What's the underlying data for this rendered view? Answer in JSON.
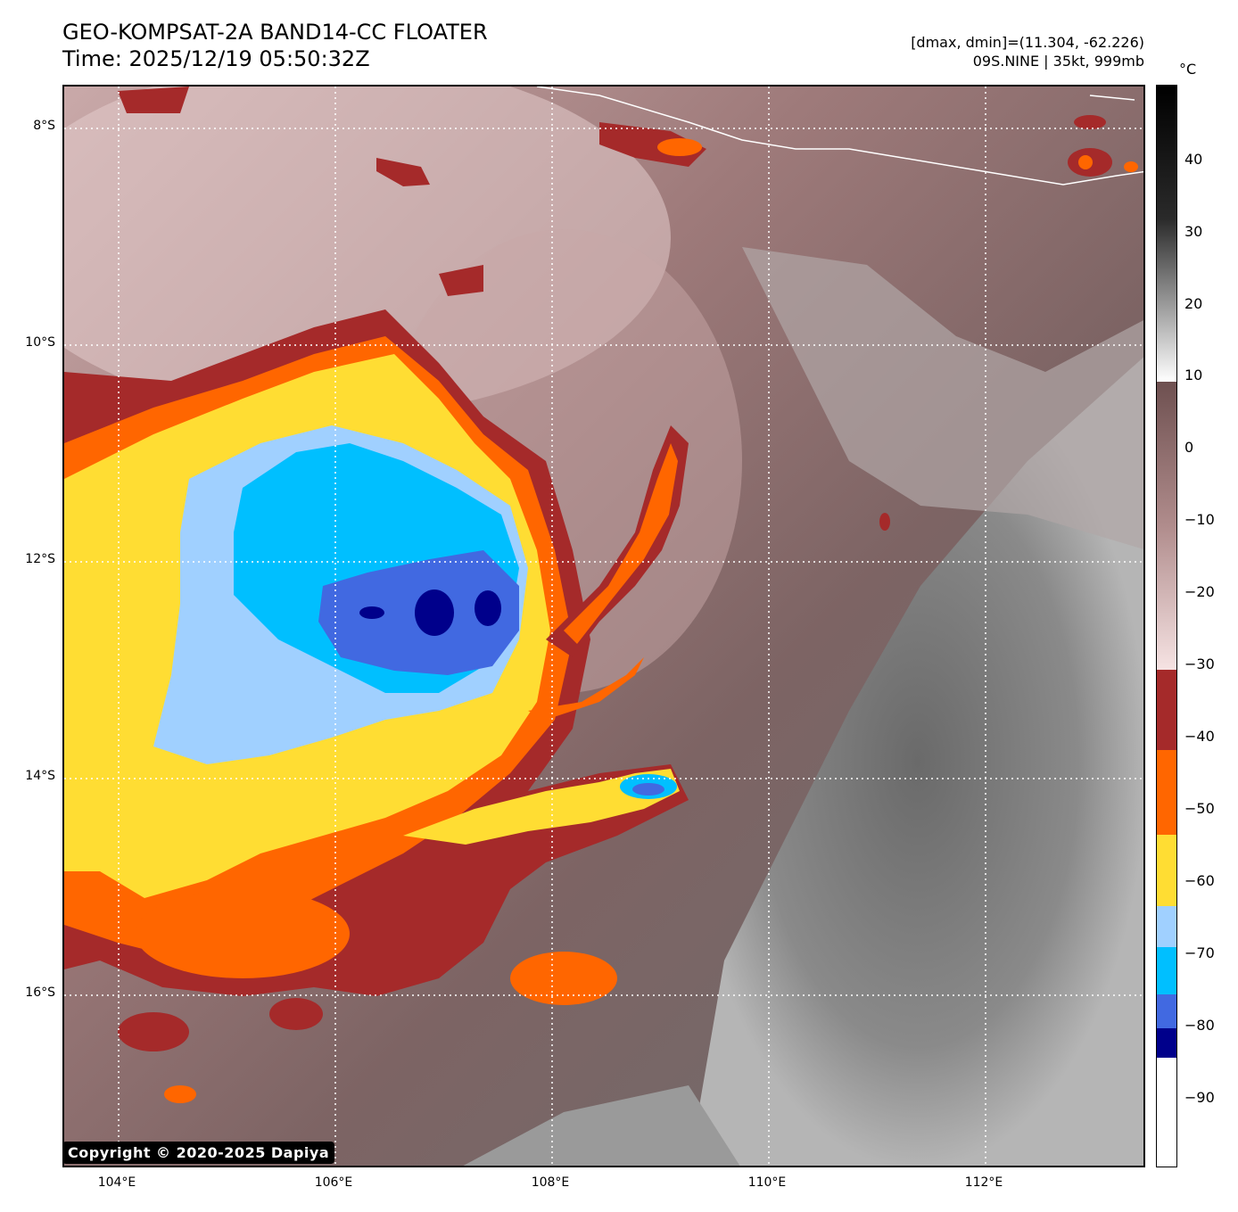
{
  "header": {
    "title_line1": "GEO-KOMPSAT-2A BAND14-CC FLOATER",
    "title_line2": "Time: 2025/12/19 05:50:32Z",
    "dmax_dmin": "[dmax, dmin]=(11.304, -62.226)",
    "storm_info": "09S.NINE | 35kt, 999mb"
  },
  "map": {
    "lat_labels": [
      "8°S",
      "10°S",
      "12°S",
      "14°S",
      "16°S"
    ],
    "lon_labels": [
      "104°E",
      "106°E",
      "108°E",
      "110°E",
      "112°E"
    ],
    "copyright": "Copyright © 2020-2025 Dapiya"
  },
  "colorbar": {
    "unit": "°C",
    "tick_labels": [
      "40",
      "30",
      "20",
      "10",
      "0",
      "−10",
      "−20",
      "−30",
      "−40",
      "−50",
      "−60",
      "−70",
      "−80",
      "−90"
    ],
    "bands": [
      {
        "from": 50,
        "to": 10,
        "color": "gray-gradient"
      },
      {
        "from": 10,
        "to": -30,
        "color": "rosy-gradient"
      },
      {
        "from": -30,
        "to": -41,
        "color": "#a52a2a"
      },
      {
        "from": -41,
        "to": -53,
        "color": "#ff6600"
      },
      {
        "from": -53,
        "to": -63,
        "color": "#ffdd33"
      },
      {
        "from": -63,
        "to": -68,
        "color": "#a0d0ff"
      },
      {
        "from": -68,
        "to": -75,
        "color": "#00bfff"
      },
      {
        "from": -75,
        "to": -79,
        "color": "#4169e1"
      },
      {
        "from": -79,
        "to": -83,
        "color": "#00008b"
      },
      {
        "from": -83,
        "to": -100,
        "color": "#ffffff"
      }
    ]
  }
}
